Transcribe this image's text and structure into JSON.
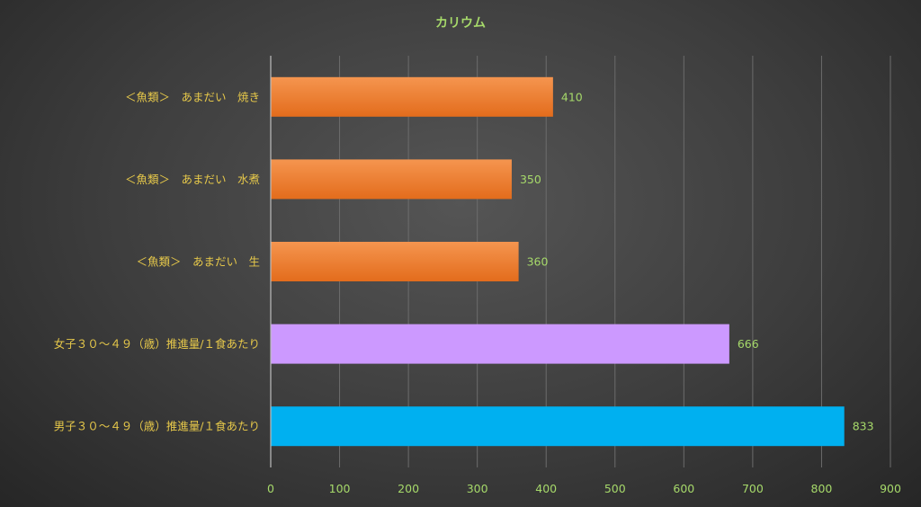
{
  "chart_data": {
    "type": "bar",
    "orientation": "horizontal",
    "title": "カリウム",
    "categories": [
      "＜魚類＞　あまだい　焼き",
      "＜魚類＞　あまだい　水煮",
      "＜魚類＞　あまだい　生",
      "女子３０～４９（歳）推進量/１食あたり",
      "男子３０～４９（歳）推進量/１食あたり"
    ],
    "values": [
      410,
      350,
      360,
      666,
      833
    ],
    "value_labels": [
      "410",
      "350",
      "360",
      "666",
      "833"
    ],
    "bar_colors": [
      "#ed7d31",
      "#ed7d31",
      "#ed7d31",
      "#cc99ff",
      "#00b0f0"
    ],
    "xlim": [
      0,
      900
    ],
    "xticks": [
      0,
      100,
      200,
      300,
      400,
      500,
      600,
      700,
      800,
      900
    ],
    "xtick_labels": [
      "0",
      "100",
      "200",
      "300",
      "400",
      "500",
      "600",
      "700",
      "800",
      "900"
    ],
    "grid": true,
    "legend": "none",
    "xlabel": "",
    "ylabel": ""
  }
}
